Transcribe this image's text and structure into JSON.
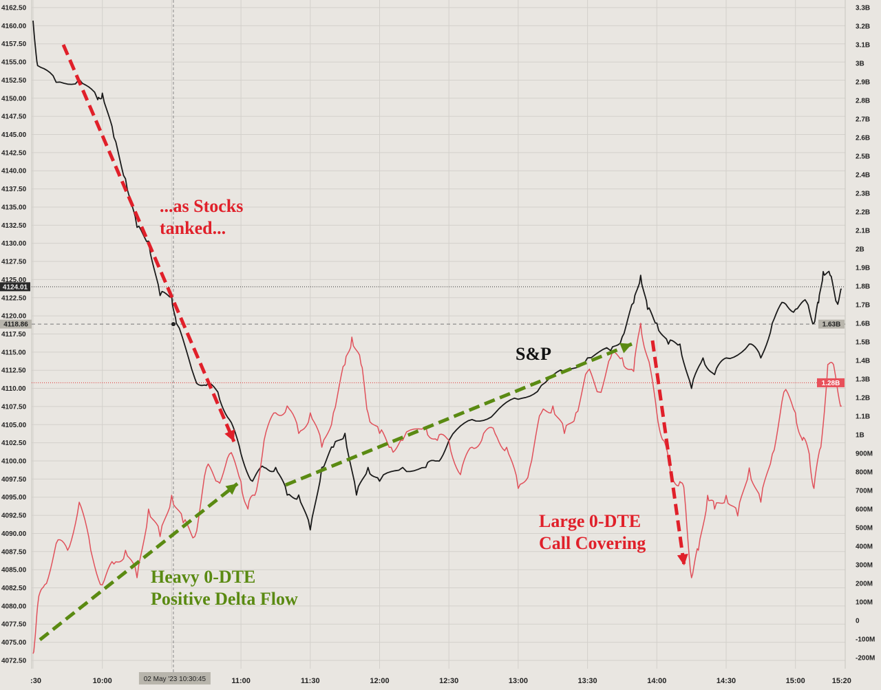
{
  "chart_data": {
    "type": "line",
    "title": "",
    "xlabel": "",
    "ylabel": "",
    "grid": true,
    "x_tick_labels": [
      ":30",
      "10:00",
      "11:00",
      "11:30",
      "12:00",
      "12:30",
      "13:00",
      "13:30",
      "14:00",
      "14:30",
      "15:00",
      "15:20"
    ],
    "x_tick_times": [
      "09:30",
      "10:00",
      "11:00",
      "11:30",
      "12:00",
      "12:30",
      "13:00",
      "13:30",
      "14:00",
      "14:30",
      "15:00",
      "15:20"
    ],
    "y_left": {
      "range": [
        4071.25,
        4163.5
      ],
      "ticks": [
        "4072.50",
        "4075.00",
        "4077.50",
        "4080.00",
        "4082.50",
        "4085.00",
        "4087.50",
        "4090.00",
        "4092.50",
        "4095.00",
        "4097.50",
        "4100.00",
        "4102.50",
        "4105.00",
        "4107.50",
        "4110.00",
        "4112.50",
        "4115.00",
        "4117.50",
        "4120.00",
        "4122.50",
        "4125.00",
        "4127.50",
        "4130.00",
        "4132.50",
        "4135.00",
        "4137.50",
        "4140.00",
        "4142.50",
        "4145.00",
        "4147.50",
        "4150.00",
        "4152.50",
        "4155.00",
        "4157.50",
        "4160.00",
        "4162.50"
      ]
    },
    "y_right": {
      "range": [
        -250,
        3350
      ],
      "ticks": [
        "3.3B",
        "3.2B",
        "3.1B",
        "3B",
        "2.9B",
        "2.8B",
        "2.7B",
        "2.6B",
        "2.5B",
        "2.4B",
        "2.3B",
        "2.2B",
        "2.1B",
        "2B",
        "1.9B",
        "1.8B",
        "1.7B",
        "1.6B",
        "1.5B",
        "1.4B",
        "1.3B",
        "1.2B",
        "1.1B",
        "1B",
        "900M",
        "800M",
        "700M",
        "600M",
        "500M",
        "400M",
        "300M",
        "200M",
        "100M",
        "0",
        "-100M",
        "-200M"
      ],
      "tick_values": [
        3300,
        3200,
        3100,
        3000,
        2900,
        2800,
        2700,
        2600,
        2500,
        2400,
        2300,
        2200,
        2100,
        2000,
        1900,
        1800,
        1700,
        1600,
        1500,
        1400,
        1300,
        1200,
        1100,
        1000,
        900,
        800,
        700,
        600,
        500,
        400,
        300,
        200,
        100,
        0,
        -100,
        -200
      ]
    },
    "series": [
      {
        "name": "S&P",
        "axis": "left",
        "color": "#1a1a1a",
        "x": [
          "09:30",
          "09:32",
          "09:40",
          "09:50",
          "09:58",
          "10:00",
          "10:05",
          "10:10",
          "10:15",
          "10:20",
          "10:25",
          "10:30",
          "10:32",
          "10:40",
          "10:45",
          "10:50",
          "10:55",
          "11:00",
          "11:05",
          "11:10",
          "11:15",
          "11:20",
          "11:25",
          "11:30",
          "11:35",
          "11:40",
          "11:45",
          "11:50",
          "11:55",
          "12:00",
          "12:10",
          "12:20",
          "12:25",
          "12:30",
          "12:40",
          "12:50",
          "13:00",
          "13:10",
          "13:20",
          "13:30",
          "13:40",
          "13:45",
          "13:50",
          "13:53",
          "13:56",
          "14:00",
          "14:05",
          "14:10",
          "14:15",
          "14:20",
          "14:25",
          "14:30",
          "14:40",
          "14:45",
          "14:50",
          "14:55",
          "15:00",
          "15:05",
          "15:08",
          "15:10",
          "15:12",
          "15:15",
          "15:18",
          "15:20"
        ],
        "y": [
          4160.7,
          4154.5,
          4152.2,
          4152.6,
          4149.8,
          4150.7,
          4144.6,
          4138.9,
          4132.2,
          4130.3,
          4122.8,
          4122.8,
          4119.0,
          4111.4,
          4110.4,
          4109.5,
          4105.7,
          4101.0,
          4097.2,
          4099.1,
          4099.1,
          4095.3,
          4095.3,
          4090.5,
          4099.1,
          4101.9,
          4103.8,
          4095.3,
          4099.1,
          4097.2,
          4099.1,
          4099.1,
          4100.0,
          4102.8,
          4105.7,
          4106.6,
          4108.5,
          4110.4,
          4112.3,
          4114.2,
          4115.2,
          4117.1,
          4121.8,
          4125.6,
          4120.9,
          4119.0,
          4116.1,
          4116.1,
          4110.0,
          4114.2,
          4111.9,
          4114.2,
          4116.1,
          4114.2,
          4119.0,
          4121.8,
          4120.9,
          4121.8,
          4119.0,
          4121.8,
          4126.1,
          4125.6,
          4121.8,
          4123.7
        ]
      },
      {
        "axis": "right",
        "color": "#e0505a",
        "x": [
          "09:30",
          "09:32",
          "09:35",
          "09:40",
          "09:45",
          "09:50",
          "09:55",
          "10:00",
          "10:05",
          "10:10",
          "10:15",
          "10:20",
          "10:25",
          "10:30",
          "10:35",
          "10:40",
          "10:45",
          "10:50",
          "10:55",
          "11:00",
          "11:03",
          "11:06",
          "11:10",
          "11:15",
          "11:20",
          "11:25",
          "11:30",
          "11:35",
          "11:40",
          "11:45",
          "11:48",
          "11:52",
          "11:55",
          "12:00",
          "12:05",
          "12:10",
          "12:20",
          "12:25",
          "12:30",
          "12:35",
          "12:40",
          "12:45",
          "12:50",
          "12:55",
          "13:00",
          "13:05",
          "13:10",
          "13:15",
          "13:20",
          "13:25",
          "13:30",
          "13:35",
          "13:40",
          "13:45",
          "13:50",
          "13:53",
          "13:56",
          "14:00",
          "14:03",
          "14:06",
          "14:10",
          "14:12",
          "14:15",
          "14:18",
          "14:22",
          "14:25",
          "14:30",
          "14:35",
          "14:40",
          "14:45",
          "14:50",
          "14:55",
          "15:00",
          "15:03",
          "15:06",
          "15:08",
          "15:11",
          "15:14",
          "15:17",
          "15:20"
        ],
        "y": [
          -178,
          81,
          192,
          415,
          378,
          637,
          378,
          192,
          304,
          378,
          230,
          600,
          452,
          674,
          526,
          452,
          822,
          748,
          896,
          748,
          600,
          674,
          970,
          1118,
          1155,
          1007,
          1118,
          933,
          1118,
          1378,
          1526,
          1378,
          1118,
          1007,
          933,
          970,
          1044,
          970,
          970,
          785,
          933,
          1007,
          1007,
          933,
          711,
          822,
          1118,
          1155,
          1007,
          1118,
          1341,
          1230,
          1415,
          1415,
          1341,
          1600,
          1415,
          1118,
          970,
          785,
          748,
          674,
          230,
          378,
          674,
          600,
          674,
          563,
          822,
          637,
          896,
          1230,
          1118,
          970,
          896,
          711,
          933,
          1378,
          1341,
          1155
        ]
      }
    ],
    "annotations": {
      "stocks_tanked": "...as Stocks\ntanked...",
      "positive_flow": "Heavy 0-DTE\nPositive Delta Flow",
      "sp_label": "S&P",
      "call_covering": "Large 0-DTE\nCall Covering"
    },
    "markers": {
      "last_price": "4124.01",
      "crosshair_price": "4118.86",
      "crosshair_right": "1.63B",
      "last_right": "1.28B",
      "crosshair_time": "02 May '23  10:30:45"
    },
    "colors": {
      "background": "#e9e6e1",
      "sp": "#1a1a1a",
      "flow": "#e0505a",
      "red_arrow": "#e0202a",
      "green_arrow": "#5a8a12"
    }
  }
}
